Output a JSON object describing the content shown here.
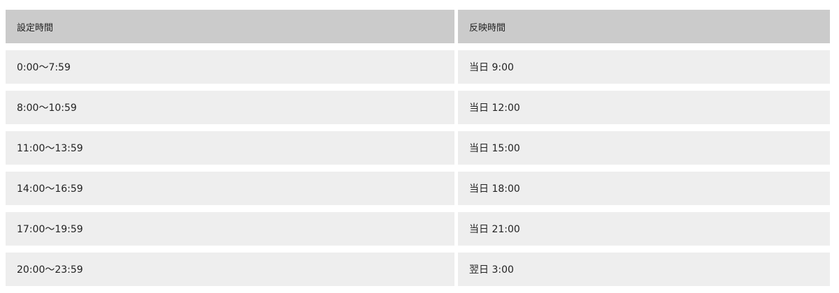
{
  "table": {
    "headers": [
      "設定時間",
      "反映時間"
    ],
    "rows": [
      [
        "0:00〜7:59",
        "当日 9:00"
      ],
      [
        "8:00〜10:59",
        "当日 12:00"
      ],
      [
        "11:00〜13:59",
        "当日 15:00"
      ],
      [
        "14:00〜16:59",
        "当日 18:00"
      ],
      [
        "17:00〜19:59",
        "当日 21:00"
      ],
      [
        "20:00〜23:59",
        "翌日 3:00"
      ]
    ]
  },
  "colors": {
    "header_bg": "#cbcbcb",
    "row_bg": "#eeeeee"
  }
}
